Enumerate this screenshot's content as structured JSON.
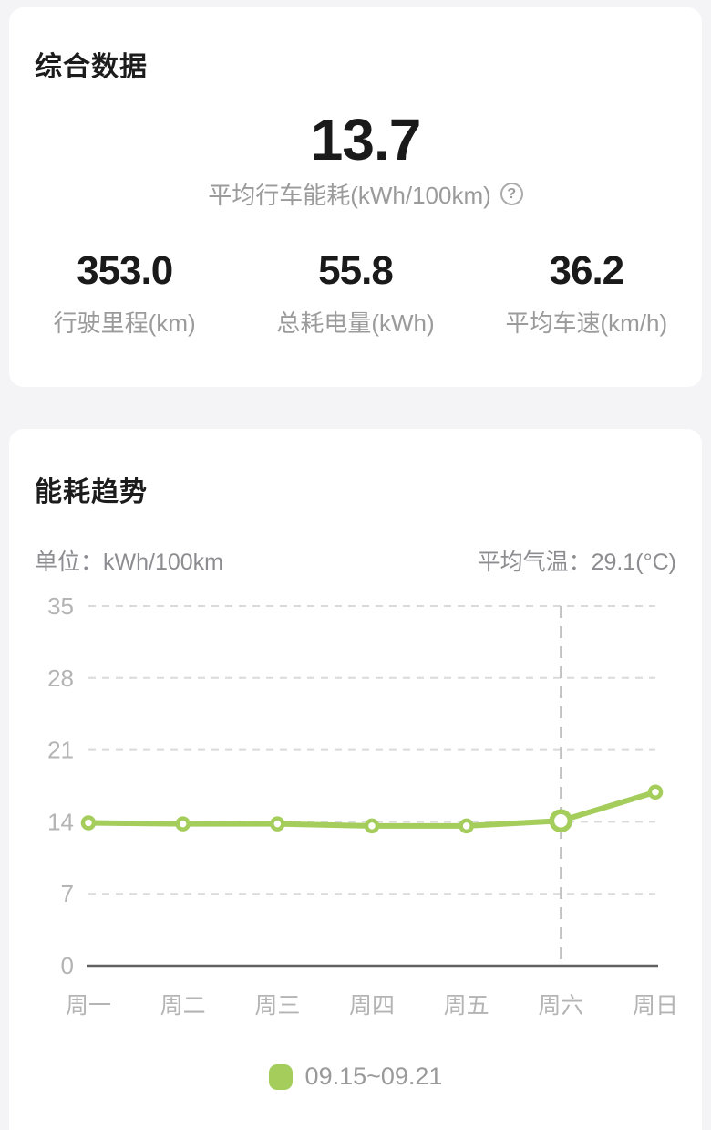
{
  "page": {
    "background": "#f4f4f6",
    "card_background": "#ffffff"
  },
  "summary_card": {
    "title": "综合数据",
    "primary": {
      "value": "13.7",
      "label": "平均行车能耗(kWh/100km)",
      "help_glyph": "?"
    },
    "stats": [
      {
        "value": "353.0",
        "label": "行驶里程(km)"
      },
      {
        "value": "55.8",
        "label": "总耗电量(kWh)"
      },
      {
        "value": "36.2",
        "label": "平均车速(km/h)"
      }
    ]
  },
  "trend_card": {
    "title": "能耗趋势",
    "unit_label": "单位：kWh/100km",
    "avg_temp_label": "平均气温：29.1(°C)",
    "legend": {
      "label": "09.15~09.21",
      "color": "#a4cd5c"
    }
  },
  "chart_data": {
    "type": "line",
    "title": "能耗趋势",
    "ylabel": "kWh/100km",
    "categories": [
      "周一",
      "周二",
      "周三",
      "周四",
      "周五",
      "周六",
      "周日"
    ],
    "series": [
      {
        "name": "09.15~09.21",
        "color": "#a4cd5c",
        "values": [
          13.9,
          13.8,
          13.8,
          13.6,
          13.6,
          14.1,
          16.9
        ]
      }
    ],
    "yticks": [
      0,
      7,
      14,
      21,
      28,
      35
    ],
    "ylim": [
      0,
      35
    ],
    "highlight_index": 5,
    "grid": "dashed-horizontal",
    "legend_position": "bottom",
    "colors": {
      "gridline": "#dadada",
      "baseline": "#616161",
      "highlight_line": "#c3c3c3",
      "axis_text": "#b4b4b4",
      "marker_fill": "#ffffff"
    }
  }
}
